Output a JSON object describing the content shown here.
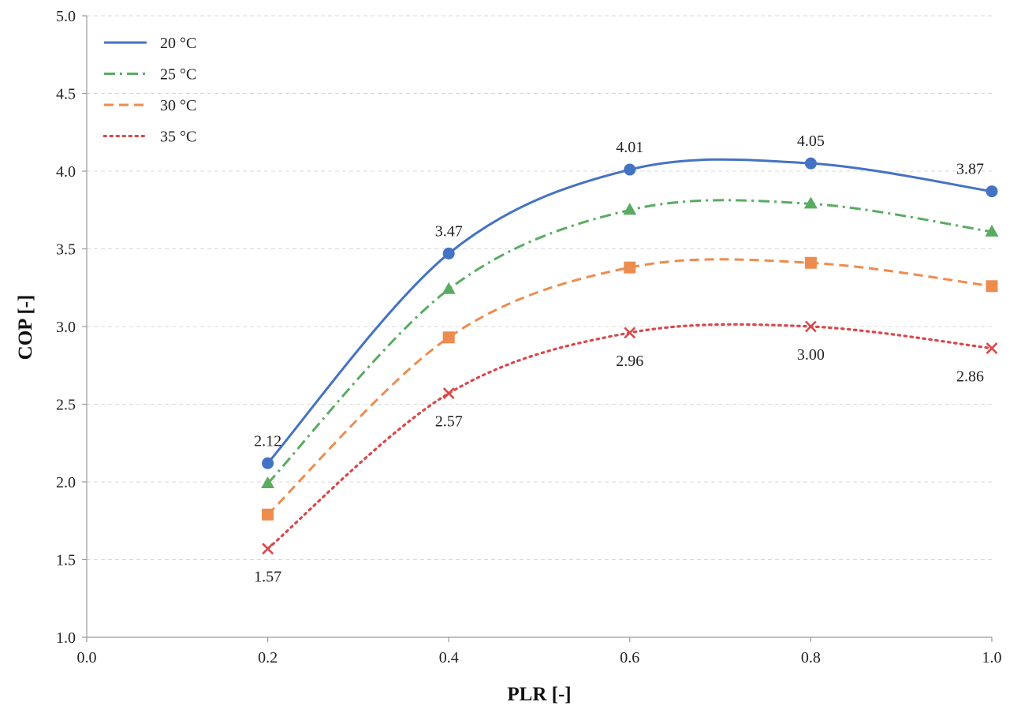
{
  "chart_data": {
    "type": "line",
    "title": "",
    "xlabel": "PLR [-]",
    "ylabel": "COP [-]",
    "xlim": [
      0.0,
      1.0
    ],
    "ylim": [
      1.0,
      5.0
    ],
    "x_ticks": [
      "0.0",
      "0.2",
      "0.4",
      "0.6",
      "0.8",
      "1.0"
    ],
    "y_ticks": [
      "1.0",
      "1.5",
      "2.0",
      "2.5",
      "3.0",
      "3.5",
      "4.0",
      "4.5",
      "5.0"
    ],
    "grid": "horizontal-dashed",
    "legend_position": "top-left",
    "x": [
      0.2,
      0.4,
      0.6,
      0.8,
      1.0
    ],
    "series": [
      {
        "name": "20 °C",
        "values": [
          2.12,
          3.47,
          4.01,
          4.05,
          3.87
        ],
        "color": "#4472c4",
        "line_style": "solid",
        "marker": "circle",
        "labels": [
          "2.12",
          "3.47",
          "4.01",
          "4.05",
          "3.87"
        ]
      },
      {
        "name": "25 °C",
        "values": [
          1.99,
          3.24,
          3.75,
          3.79,
          3.61
        ],
        "color": "#5aab61",
        "line_style": "dash-dot",
        "marker": "triangle"
      },
      {
        "name": "30 °C",
        "values": [
          1.79,
          2.93,
          3.38,
          3.41,
          3.26
        ],
        "color": "#ed8c4e",
        "line_style": "dashed",
        "marker": "square"
      },
      {
        "name": "35 °C",
        "values": [
          1.57,
          2.57,
          2.96,
          3.0,
          2.86
        ],
        "color": "#d9474a",
        "line_style": "dotted",
        "marker": "x",
        "labels": [
          "1.57",
          "2.57",
          "2.96",
          "3.00",
          "2.86"
        ]
      }
    ]
  }
}
